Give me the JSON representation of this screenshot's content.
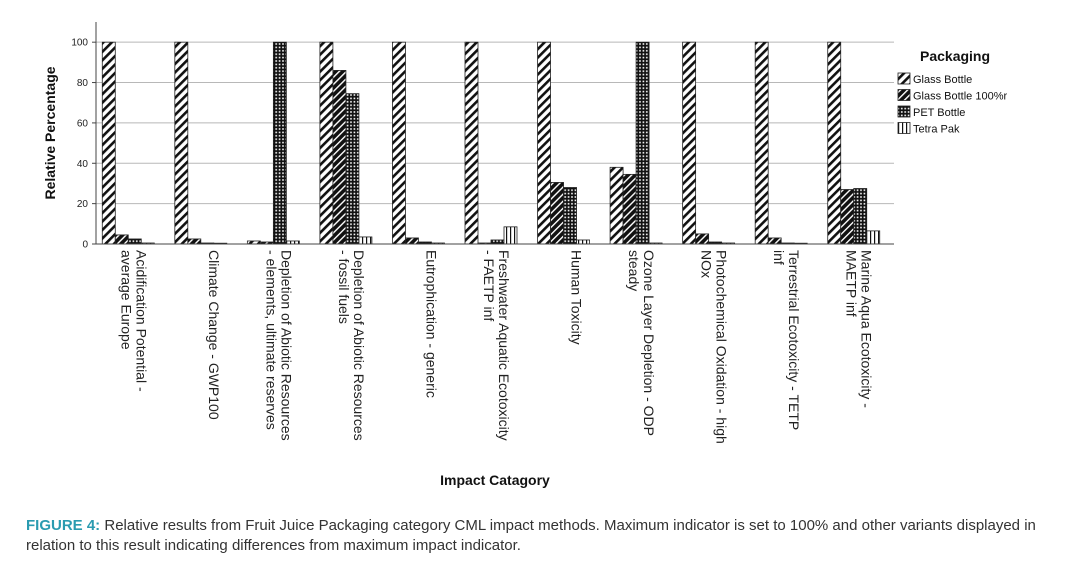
{
  "chart_data": {
    "type": "bar",
    "ylabel": "Relative Percentage",
    "xlabel": "Impact Catagory",
    "ylim": [
      0,
      110
    ],
    "yticks": [
      0,
      20,
      40,
      60,
      80,
      100
    ],
    "grid": true,
    "legend_title": "Packaging",
    "legend_position": "right",
    "categories": [
      [
        "Acidification Potential -",
        "average Europe"
      ],
      [
        "Climate Change - GWP100"
      ],
      [
        "Depletion of Abiotic Resources",
        "- elements, ultimate reserves"
      ],
      [
        "Depletion of Abiotic Resources",
        "- fossil fuels"
      ],
      [
        "Eutrophication - generic"
      ],
      [
        "Freshwater Aquatic Ecotoxicity",
        "- FAETP inf"
      ],
      [
        "Human Toxicity"
      ],
      [
        "Ozone Layer Depletion - ODP",
        "steady"
      ],
      [
        "Photochemical Oxidation - high",
        "NOx"
      ],
      [
        "Terrestrial Ecotoxicity - TETP",
        "inf"
      ],
      [
        "Marine Aqua Ecotoxicity -",
        "MAETP inf"
      ]
    ],
    "series": [
      {
        "name": "Glass Bottle",
        "values": [
          100,
          100,
          1.5,
          100,
          100,
          100,
          100,
          38,
          100,
          100,
          100
        ]
      },
      {
        "name": "Glass Bottle 100%r",
        "values": [
          4.5,
          2.5,
          1,
          86,
          3,
          0.5,
          30.5,
          34.5,
          5,
          3,
          27
        ]
      },
      {
        "name": "PET Bottle",
        "values": [
          2.5,
          0.5,
          100,
          74.5,
          1,
          2,
          28,
          100,
          1,
          0.5,
          27.5
        ]
      },
      {
        "name": "Tetra Pak",
        "values": [
          0.5,
          0.3,
          1.5,
          3.5,
          0.5,
          8.5,
          2,
          0.5,
          0.5,
          0.3,
          6.5
        ]
      }
    ]
  },
  "caption": {
    "lead": "FIGURE 4:",
    "text": " Relative results from Fruit Juice Packaging category CML impact methods. Maximum indicator is set to 100% and other variants displayed in relation to this result indicating differences from maximum impact indicator."
  }
}
